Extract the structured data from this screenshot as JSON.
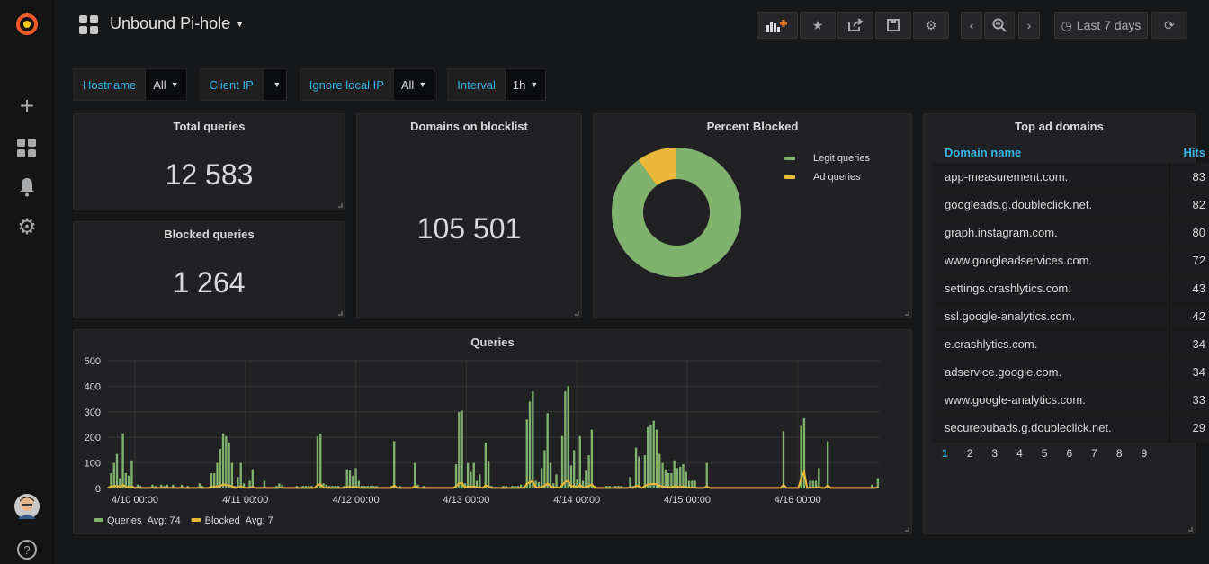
{
  "dashboard": {
    "title": "Unbound Pi-hole"
  },
  "toolbar": {
    "time_range": "Last 7 days"
  },
  "variables": [
    {
      "label": "Hostname",
      "value": "All"
    },
    {
      "label": "Client IP",
      "value": ""
    },
    {
      "label": "Ignore local IP",
      "value": "All"
    },
    {
      "label": "Interval",
      "value": "1h"
    }
  ],
  "stats": {
    "total_queries": {
      "title": "Total queries",
      "value": "12 583"
    },
    "blocked_queries": {
      "title": "Blocked queries",
      "value": "1 264"
    },
    "domains_blocklist": {
      "title": "Domains on blocklist",
      "value": "105 501"
    }
  },
  "percent_blocked": {
    "title": "Percent Blocked",
    "legend": [
      "Legit queries",
      "Ad queries"
    ],
    "colors": [
      "#7eb26d",
      "#eab839"
    ],
    "values": [
      0.9,
      0.1
    ]
  },
  "top_ad_domains": {
    "title": "Top ad domains",
    "col_domain": "Domain name",
    "col_hits": "Hits",
    "rows": [
      {
        "domain": "app-measurement.com.",
        "hits": "83"
      },
      {
        "domain": "googleads.g.doubleclick.net.",
        "hits": "82"
      },
      {
        "domain": "graph.instagram.com.",
        "hits": "80"
      },
      {
        "domain": "www.googleadservices.com.",
        "hits": "72"
      },
      {
        "domain": "settings.crashlytics.com.",
        "hits": "43"
      },
      {
        "domain": "ssl.google-analytics.com.",
        "hits": "42"
      },
      {
        "domain": "e.crashlytics.com.",
        "hits": "34"
      },
      {
        "domain": "adservice.google.com.",
        "hits": "34"
      },
      {
        "domain": "www.google-analytics.com.",
        "hits": "33"
      },
      {
        "domain": "securepubads.g.doubleclick.net.",
        "hits": "29"
      }
    ],
    "pages": [
      "1",
      "2",
      "3",
      "4",
      "5",
      "6",
      "7",
      "8",
      "9"
    ]
  },
  "chart_data": {
    "type": "bar",
    "title": "Queries",
    "ylim": [
      0,
      500
    ],
    "yticks": [
      "0",
      "100",
      "200",
      "300",
      "400",
      "500"
    ],
    "xticks": [
      "4/10 00:00",
      "4/11 00:00",
      "4/12 00:00",
      "4/13 00:00",
      "4/14 00:00",
      "4/15 00:00",
      "4/16 00:00"
    ],
    "legend": [
      {
        "name": "Queries",
        "avg": "Avg: 74",
        "color": "#7eb26d"
      },
      {
        "name": "Blocked",
        "avg": "Avg: 7",
        "color": "#eab839"
      }
    ],
    "queries": [
      5,
      60,
      100,
      135,
      40,
      215,
      60,
      50,
      110,
      5,
      15,
      10,
      5,
      5,
      5,
      15,
      10,
      5,
      15,
      10,
      15,
      5,
      15,
      5,
      5,
      15,
      5,
      10,
      5,
      5,
      5,
      20,
      10,
      5,
      5,
      60,
      60,
      100,
      155,
      215,
      205,
      180,
      100,
      10,
      45,
      100,
      20,
      5,
      30,
      75,
      5,
      5,
      5,
      30,
      5,
      5,
      5,
      10,
      20,
      15,
      5,
      5,
      5,
      5,
      10,
      5,
      10,
      10,
      10,
      10,
      5,
      205,
      215,
      20,
      15,
      10,
      10,
      10,
      10,
      5,
      10,
      75,
      70,
      50,
      80,
      30,
      10,
      10,
      10,
      10,
      10,
      10,
      5,
      5,
      5,
      5,
      10,
      185,
      5,
      10,
      5,
      5,
      5,
      5,
      100,
      15,
      5,
      10,
      5,
      5,
      5,
      5,
      5,
      5,
      5,
      5,
      5,
      5,
      95,
      300,
      305,
      20,
      100,
      65,
      100,
      30,
      55,
      5,
      180,
      105,
      10,
      5,
      5,
      5,
      10,
      10,
      5,
      10,
      10,
      10,
      15,
      5,
      270,
      340,
      380,
      30,
      25,
      80,
      150,
      295,
      100,
      20,
      55,
      5,
      205,
      380,
      400,
      90,
      150,
      35,
      205,
      30,
      70,
      130,
      230,
      10,
      5,
      5,
      5,
      10,
      10,
      5,
      10,
      10,
      10,
      5,
      5,
      45,
      10,
      160,
      125,
      5,
      130,
      240,
      250,
      265,
      230,
      135,
      100,
      75,
      60,
      60,
      110,
      80,
      85,
      95,
      65,
      30,
      30,
      30,
      5,
      5,
      5,
      100,
      5,
      5,
      5,
      5,
      5,
      5,
      5,
      5,
      5,
      5,
      5,
      5,
      5,
      5,
      5,
      5,
      5,
      5,
      5,
      5,
      5,
      5,
      5,
      5,
      5,
      225,
      5,
      5,
      5,
      5,
      5,
      245,
      275,
      5,
      30,
      30,
      30,
      80,
      5,
      5,
      185,
      5,
      5,
      5,
      5,
      5,
      5,
      5,
      5,
      5,
      5,
      5,
      5,
      5,
      5,
      15,
      5,
      40
    ],
    "blocked": [
      4,
      7,
      9,
      10,
      5,
      14,
      6,
      5,
      8,
      2,
      3,
      2,
      2,
      2,
      2,
      3,
      2,
      2,
      3,
      2,
      3,
      2,
      3,
      2,
      2,
      3,
      2,
      2,
      2,
      2,
      2,
      3,
      2,
      2,
      2,
      6,
      6,
      8,
      11,
      16,
      14,
      12,
      8,
      2,
      4,
      8,
      3,
      2,
      3,
      6,
      2,
      2,
      2,
      3,
      2,
      2,
      2,
      2,
      3,
      3,
      2,
      2,
      2,
      2,
      2,
      2,
      2,
      2,
      2,
      2,
      2,
      14,
      16,
      3,
      3,
      2,
      2,
      2,
      2,
      2,
      2,
      6,
      6,
      5,
      6,
      3,
      2,
      2,
      2,
      2,
      2,
      2,
      2,
      2,
      2,
      2,
      2,
      12,
      2,
      2,
      2,
      2,
      2,
      2,
      8,
      3,
      2,
      2,
      2,
      2,
      2,
      2,
      2,
      2,
      2,
      2,
      2,
      2,
      8,
      20,
      22,
      3,
      8,
      5,
      8,
      3,
      5,
      2,
      12,
      8,
      2,
      2,
      2,
      2,
      2,
      2,
      2,
      2,
      2,
      2,
      3,
      2,
      18,
      25,
      28,
      4,
      3,
      6,
      10,
      20,
      8,
      3,
      5,
      2,
      14,
      26,
      30,
      7,
      10,
      4,
      14,
      3,
      6,
      9,
      16,
      2,
      2,
      2,
      2,
      2,
      2,
      2,
      2,
      2,
      2,
      2,
      2,
      4,
      2,
      11,
      9,
      2,
      9,
      16,
      17,
      18,
      16,
      10,
      8,
      6,
      5,
      5,
      8,
      6,
      6,
      7,
      5,
      3,
      3,
      3,
      2,
      2,
      2,
      8,
      2,
      2,
      2,
      2,
      2,
      2,
      2,
      2,
      2,
      2,
      2,
      2,
      2,
      2,
      2,
      2,
      2,
      2,
      2,
      2,
      2,
      2,
      2,
      2,
      2,
      15,
      2,
      2,
      2,
      2,
      2,
      40,
      65,
      2,
      3,
      3,
      3,
      6,
      2,
      2,
      12,
      2,
      2,
      2,
      2,
      2,
      2,
      2,
      2,
      2,
      2,
      2,
      2,
      2,
      2,
      2,
      2,
      4
    ]
  }
}
